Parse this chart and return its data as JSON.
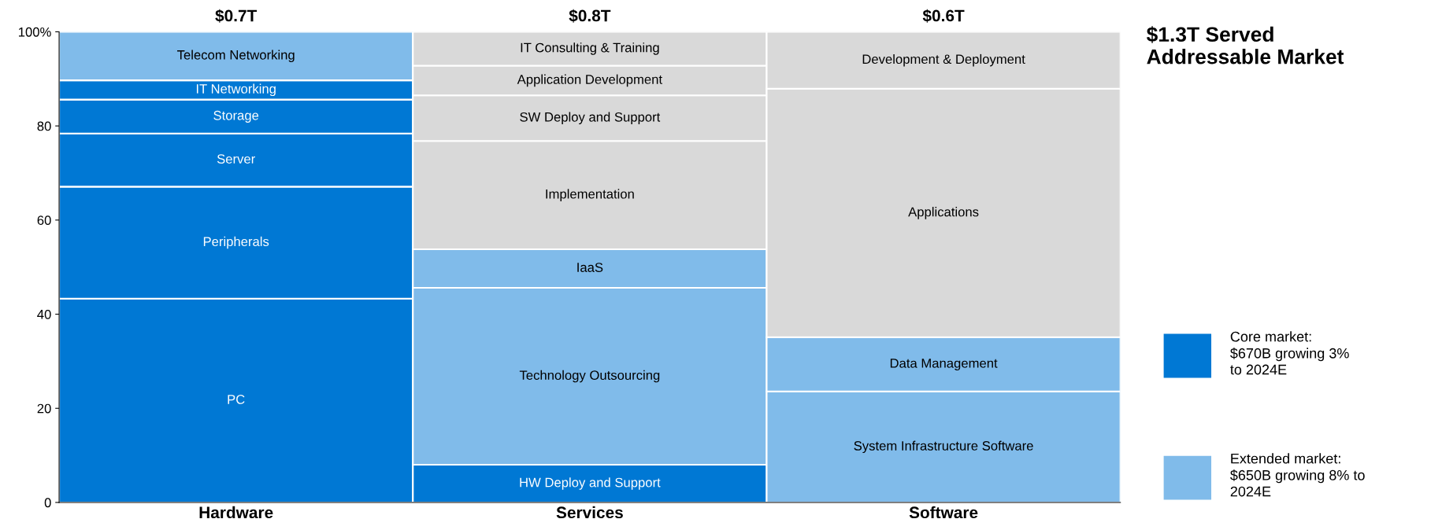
{
  "chart_data": {
    "type": "bar",
    "stacked": true,
    "title": "$1.3T Served\nAddressable Market",
    "categories": [
      "Hardware",
      "Services",
      "Software"
    ],
    "totals": [
      "$0.7T",
      "$0.8T",
      "$0.6T"
    ],
    "ylim": [
      0,
      100
    ],
    "yticks": [
      0,
      20,
      40,
      60,
      80,
      {
        "value": 100,
        "label": "100%"
      }
    ],
    "grid": false,
    "legend": "right",
    "series": [
      {
        "name": "PC",
        "color": "#0078d4",
        "values": [
          43.3,
          null,
          null
        ]
      },
      {
        "name": "Peripherals",
        "color": "#0078d4",
        "values": [
          23.8,
          null,
          null
        ]
      },
      {
        "name": "Server",
        "color": "#0078d4",
        "values": [
          11.3,
          null,
          null
        ]
      },
      {
        "name": "Storage",
        "color": "#0078d4",
        "values": [
          7.2,
          null,
          null
        ]
      },
      {
        "name": "IT Networking",
        "color": "#0078d4",
        "values": [
          4.1,
          null,
          null
        ]
      },
      {
        "name": "Telecom Networking",
        "color": "#80bbea",
        "values": [
          10.3,
          null,
          null
        ]
      },
      {
        "name": "HW Deploy and Support",
        "color": "#0078d4",
        "values": [
          null,
          8.0,
          null
        ]
      },
      {
        "name": "Technology Outsourcing",
        "color": "#80bbea",
        "values": [
          null,
          37.6,
          null
        ]
      },
      {
        "name": "IaaS",
        "color": "#80bbea",
        "values": [
          null,
          8.2,
          null
        ]
      },
      {
        "name": "Implementation",
        "color": "#d9d9d9",
        "values": [
          null,
          23.0,
          null
        ]
      },
      {
        "name": "SW Deploy and Support",
        "color": "#d9d9d9",
        "values": [
          null,
          9.7,
          null
        ]
      },
      {
        "name": "Application Development",
        "color": "#d9d9d9",
        "values": [
          null,
          6.3,
          null
        ]
      },
      {
        "name": "IT Consulting & Training",
        "color": "#d9d9d9",
        "values": [
          null,
          7.2,
          null
        ]
      },
      {
        "name": "System Infrastructure Software",
        "color": "#80bbea",
        "values": [
          null,
          null,
          23.6
        ]
      },
      {
        "name": "Data Management",
        "color": "#80bbea",
        "values": [
          null,
          null,
          11.5
        ]
      },
      {
        "name": "Applications",
        "color": "#d9d9d9",
        "values": [
          null,
          null,
          52.8
        ]
      },
      {
        "name": "Development & Deployment",
        "color": "#d9d9d9",
        "values": [
          null,
          null,
          12.1
        ]
      }
    ],
    "annotations": [
      "Core market:\n$670B growing 3%\nto 2024E",
      "Extended market:\n$650B growing 8% to\n2024E"
    ]
  }
}
